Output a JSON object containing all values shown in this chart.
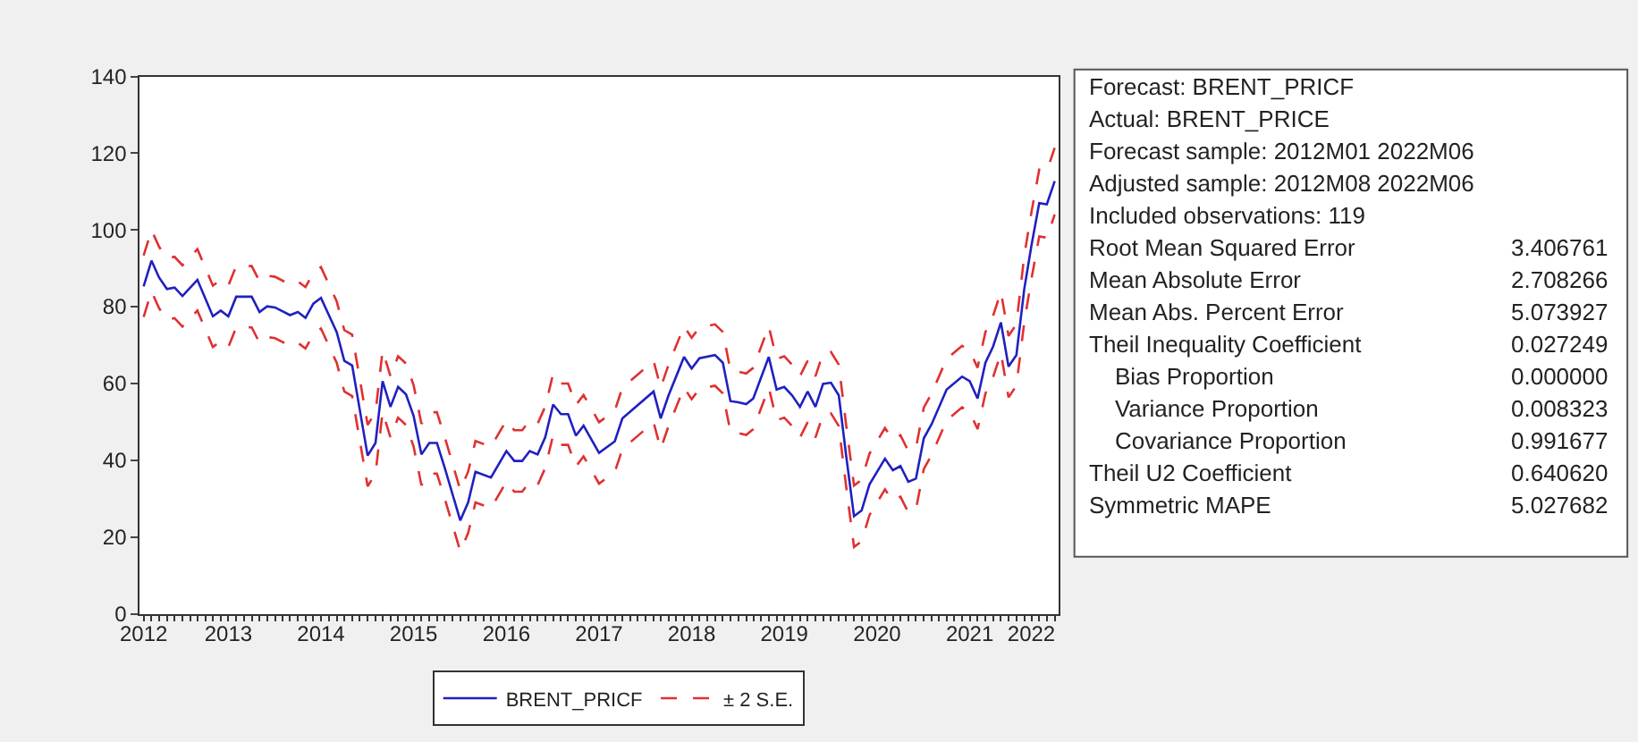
{
  "chart_data": [
    {
      "type": "line",
      "legend": "bottom",
      "grid": false,
      "x": [
        "2012-08",
        "2012-09",
        "2012-10",
        "2012-11",
        "2012-12",
        "2013-01",
        "2013-03",
        "2013-05",
        "2013-06",
        "2013-07",
        "2013-08",
        "2013-10",
        "2013-11",
        "2013-12",
        "2014-01",
        "2014-03",
        "2014-04",
        "2014-05",
        "2014-06",
        "2014-07",
        "2014-09",
        "2014-10",
        "2014-11",
        "2015-01",
        "2015-02",
        "2015-03",
        "2015-04",
        "2015-05",
        "2015-06",
        "2015-07",
        "2015-08",
        "2015-09",
        "2015-10",
        "2015-11",
        "2016-01",
        "2016-02",
        "2016-03",
        "2016-05",
        "2016-07",
        "2016-08",
        "2016-09",
        "2016-10",
        "2016-11",
        "2016-12",
        "2017-01",
        "2017-02",
        "2017-03",
        "2017-04",
        "2017-05",
        "2017-07",
        "2017-09",
        "2017-10",
        "2018-02",
        "2018-03",
        "2018-04",
        "2018-06",
        "2018-07",
        "2018-08",
        "2018-10",
        "2018-11",
        "2018-12",
        "2019-01",
        "2019-02",
        "2019-03",
        "2019-05",
        "2019-06",
        "2019-07",
        "2019-08",
        "2019-09",
        "2019-10",
        "2019-11",
        "2019-12",
        "2020-01",
        "2020-02",
        "2020-03",
        "2020-04",
        "2020-05",
        "2020-06",
        "2020-08",
        "2020-09",
        "2020-10",
        "2020-11",
        "2020-12",
        "2021-01",
        "2021-02",
        "2021-04",
        "2021-06",
        "2021-07",
        "2021-08",
        "2021-09",
        "2021-10",
        "2021-11",
        "2021-12",
        "2022-01",
        "2022-02",
        "2022-03",
        "2022-04",
        "2022-05",
        "2022-06"
      ],
      "series": [
        {
          "name": "BRENT_PRICF",
          "color": "#2020c0",
          "line_style": "solid",
          "values": [
            85.3,
            92,
            87.6,
            84.6,
            85,
            82.8,
            87,
            77.5,
            79,
            77.5,
            82.6,
            82.6,
            78.6,
            80.1,
            79.8,
            77.8,
            78.6,
            77.1,
            80.8,
            82.3,
            73.4,
            65.9,
            64.7,
            41.2,
            44.5,
            60.6,
            53.9,
            59.1,
            57.2,
            51.6,
            41.5,
            44.5,
            44.5,
            38,
            24.3,
            29,
            37,
            35.5,
            42.4,
            39.8,
            39.8,
            42.4,
            41.5,
            46,
            54.5,
            52,
            52,
            46.4,
            49,
            41.9,
            44.9,
            50.9,
            57.9,
            50.9,
            56.9,
            66.9,
            63.9,
            66.6,
            67.4,
            65.4,
            55.4,
            55.1,
            54.6,
            56.1,
            66.9,
            58.4,
            59.1,
            56.9,
            53.9,
            57.9,
            53.9,
            59.9,
            60.2,
            56.9,
            41.2,
            25.4,
            26.9,
            33.7,
            40.4,
            37.4,
            38.5,
            34.4,
            35.2,
            45.7,
            49.4,
            58.4,
            61.8,
            60.6,
            56.1,
            65.4,
            69.6,
            75.9,
            64.4,
            67.4,
            84.6,
            95.8,
            107,
            106.7,
            112.7
          ]
        },
        {
          "name": "± 2 S.E.",
          "color": "#e03030",
          "line_style": "dashed",
          "values": [
            93.3,
            100,
            95.6,
            92.6,
            93,
            90.8,
            95,
            85.5,
            87,
            85.5,
            90.6,
            90.6,
            86.6,
            88.1,
            87.8,
            85.8,
            86.6,
            85.1,
            88.8,
            90.3,
            81.4,
            73.9,
            72.7,
            49.2,
            52.5,
            68.6,
            61.9,
            67.1,
            65.2,
            59.6,
            49.5,
            52.5,
            52.5,
            46,
            32.3,
            37,
            45,
            43.5,
            50.4,
            47.8,
            47.8,
            50.4,
            49.5,
            54,
            62.5,
            60,
            60,
            54.4,
            57,
            49.9,
            52.9,
            58.9,
            65.9,
            58.9,
            64.9,
            74.9,
            71.9,
            74.6,
            75.4,
            73.4,
            63.4,
            63.1,
            62.6,
            64.1,
            74.9,
            66.4,
            67.1,
            64.9,
            61.9,
            65.9,
            61.9,
            67.9,
            68.2,
            64.9,
            49.2,
            33.4,
            34.9,
            41.7,
            48.4,
            45.4,
            46.5,
            42.4,
            43.2,
            53.7,
            57.4,
            66.4,
            69.8,
            68.6,
            64.1,
            73.4,
            77.6,
            83.9,
            72.4,
            75.4,
            93.3,
            104.5,
            115.7,
            115.4,
            121.4
          ]
        },
        {
          "color": "#e03030",
          "line_style": "dashed",
          "values": [
            77.3,
            84,
            79.6,
            76.6,
            77,
            74.8,
            79,
            69.5,
            71,
            69.5,
            74.6,
            74.6,
            70.6,
            72.1,
            71.8,
            69.8,
            70.6,
            69.1,
            72.8,
            74.3,
            65.4,
            57.9,
            56.7,
            33.2,
            36.5,
            52.6,
            45.9,
            51.1,
            49.2,
            43.6,
            33.5,
            36.5,
            36.5,
            30,
            16.3,
            21,
            29,
            27.5,
            34.4,
            31.8,
            31.8,
            34.4,
            33.5,
            38,
            46.5,
            44,
            44,
            38.4,
            41,
            33.9,
            36.9,
            42.9,
            49.9,
            42.9,
            48.9,
            58.9,
            55.9,
            58.6,
            59.4,
            57.4,
            47.4,
            47.1,
            46.6,
            48.1,
            58.9,
            50.4,
            51.1,
            48.9,
            45.9,
            49.9,
            45.9,
            51.9,
            52.2,
            48.9,
            33.2,
            17.4,
            18.9,
            25.7,
            32.4,
            29.4,
            30.5,
            26.4,
            27.2,
            37.7,
            41.4,
            50.4,
            53.8,
            52.6,
            48.1,
            57.4,
            61.6,
            67.9,
            56.4,
            59.4,
            75.9,
            87.1,
            98.3,
            98,
            104
          ]
        }
      ],
      "xlim": [
        "2012-07-17",
        "2022-06-16"
      ],
      "xticks": [
        {
          "value": "2012-08-01",
          "label": "2012"
        },
        {
          "value": "2013-07-01",
          "label": "2013"
        },
        {
          "value": "2014-07-01",
          "label": "2014"
        },
        {
          "value": "2015-07-01",
          "label": "2015"
        },
        {
          "value": "2016-07-01",
          "label": "2016"
        },
        {
          "value": "2017-07-01",
          "label": "2017"
        },
        {
          "value": "2018-07-01",
          "label": "2018"
        },
        {
          "value": "2019-07-01",
          "label": "2019"
        },
        {
          "value": "2020-07-01",
          "label": "2020"
        },
        {
          "value": "2021-07-01",
          "label": "2021"
        },
        {
          "value": "2022-03-01",
          "label": "2022"
        }
      ],
      "ylim": [
        0,
        140
      ],
      "yticks": [
        0,
        20,
        40,
        60,
        80,
        100,
        120,
        140
      ]
    },
    {
      "type": "other",
      "annotations": [
        "Forecast: BRENT_PRICF",
        "Actual: BRENT_PRICE",
        "Forecast sample: 2012M01 2022M06",
        "Adjusted sample: 2012M08 2022M06",
        "Included observations: 119",
        "Root Mean Squared Error\t3.406761",
        "Mean Absolute Error\t2.708266",
        "Mean Abs. Percent Error\t5.073927",
        "Theil Inequality Coefficient\t0.027249",
        "    Bias Proportion\t0.000000",
        "    Variance Proportion\t0.008323",
        "    Covariance Proportion\t0.991677",
        "Theil U2 Coefficient\t0.640620",
        "Symmetric MAPE\t5.027682"
      ]
    }
  ]
}
